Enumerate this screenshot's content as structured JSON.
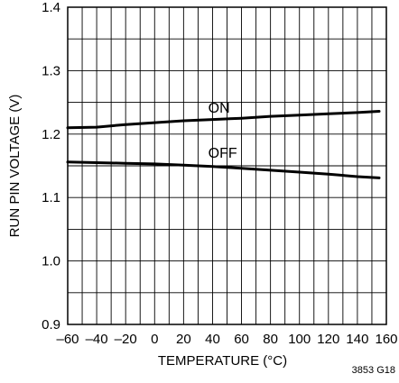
{
  "chart_data": {
    "type": "line",
    "xlabel": "TEMPERATURE (°C)",
    "ylabel": "RUN PIN VOLTAGE (V)",
    "xlim": [
      -60,
      160
    ],
    "ylim": [
      0.9,
      1.4
    ],
    "x_ticks": [
      -60,
      -40,
      -20,
      0,
      20,
      40,
      60,
      80,
      100,
      120,
      140,
      160
    ],
    "x_tick_labels": [
      "–60",
      "–40",
      "–20",
      "0",
      "20",
      "40",
      "60",
      "80",
      "100",
      "120",
      "140",
      "160"
    ],
    "y_ticks": [
      0.9,
      1.0,
      1.1,
      1.2,
      1.3,
      1.4
    ],
    "y_tick_labels": [
      "0.9",
      "1.0",
      "1.1",
      "1.2",
      "1.3",
      "1.4"
    ],
    "grid": true,
    "series": [
      {
        "name": "ON",
        "x": [
          -60,
          -40,
          -20,
          0,
          20,
          40,
          60,
          80,
          100,
          120,
          140,
          155
        ],
        "y": [
          1.21,
          1.211,
          1.215,
          1.218,
          1.221,
          1.223,
          1.225,
          1.228,
          1.23,
          1.232,
          1.234,
          1.236
        ]
      },
      {
        "name": "OFF",
        "x": [
          -60,
          -40,
          -20,
          0,
          20,
          40,
          60,
          80,
          100,
          120,
          140,
          155
        ],
        "y": [
          1.156,
          1.155,
          1.154,
          1.153,
          1.151,
          1.149,
          1.146,
          1.143,
          1.14,
          1.137,
          1.133,
          1.131
        ]
      }
    ],
    "annotations": [
      {
        "text": "ON",
        "x": 37,
        "y": 1.234
      },
      {
        "text": "OFF",
        "x": 37,
        "y": 1.163
      }
    ],
    "figure_code": "3853 G18",
    "colors": {
      "line": "#000000",
      "grid": "#000000",
      "background": "#ffffff"
    }
  }
}
